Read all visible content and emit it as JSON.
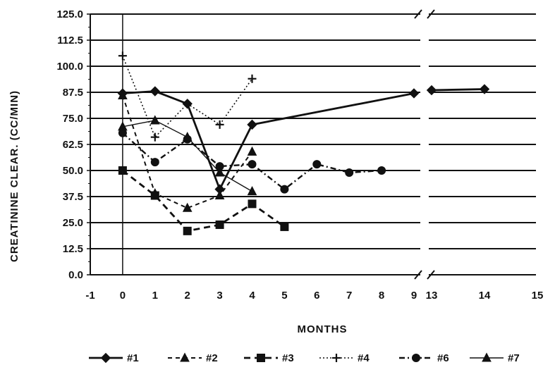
{
  "chart_data": {
    "type": "line",
    "xlabel": "MONTHS",
    "ylabel": "CREATININE CLEAR. (CC/MIN)",
    "ylim": [
      0,
      125
    ],
    "yticks": [
      "0.0",
      "12.5",
      "25.0",
      "37.5",
      "50.0",
      "62.5",
      "75.0",
      "87.5",
      "100.0",
      "112.5",
      "125.0"
    ],
    "xticks_left": [
      "-1",
      "0",
      "1",
      "2",
      "3",
      "4",
      "5",
      "6",
      "7",
      "8",
      "9"
    ],
    "xticks_right": [
      "13",
      "14",
      "15"
    ],
    "x_axis_break": "between 9 and 13",
    "grid": "horizontal",
    "legend_position": "bottom",
    "series": [
      {
        "name": "#1",
        "marker": "diamond",
        "line": "solid-thick",
        "x": [
          0,
          1,
          2,
          3,
          4,
          9,
          13,
          14
        ],
        "y": [
          87,
          88,
          82,
          41,
          72,
          87,
          88.5,
          89
        ]
      },
      {
        "name": "#2",
        "marker": "triangle",
        "line": "dashed",
        "x": [
          0,
          1,
          2,
          3,
          4
        ],
        "y": [
          86,
          39,
          32,
          38,
          59
        ]
      },
      {
        "name": "#3",
        "marker": "square",
        "line": "dashed-thick",
        "x": [
          0,
          1,
          2,
          3,
          4,
          5
        ],
        "y": [
          50,
          38,
          21,
          24,
          34,
          23
        ]
      },
      {
        "name": "#4",
        "marker": "plus",
        "line": "dotted",
        "x": [
          0,
          1,
          2,
          3,
          4
        ],
        "y": [
          105,
          66,
          82,
          72,
          94
        ]
      },
      {
        "name": "#6",
        "marker": "circle",
        "line": "dash-dot",
        "x": [
          0,
          1,
          2,
          3,
          4,
          5,
          6,
          7,
          8
        ],
        "y": [
          68,
          54,
          65,
          52,
          53,
          41,
          53,
          49,
          50
        ]
      },
      {
        "name": "#7",
        "marker": "triangle",
        "line": "solid-thin",
        "x": [
          0,
          1,
          2,
          3,
          4
        ],
        "y": [
          71,
          74,
          66,
          49,
          40
        ]
      }
    ]
  }
}
